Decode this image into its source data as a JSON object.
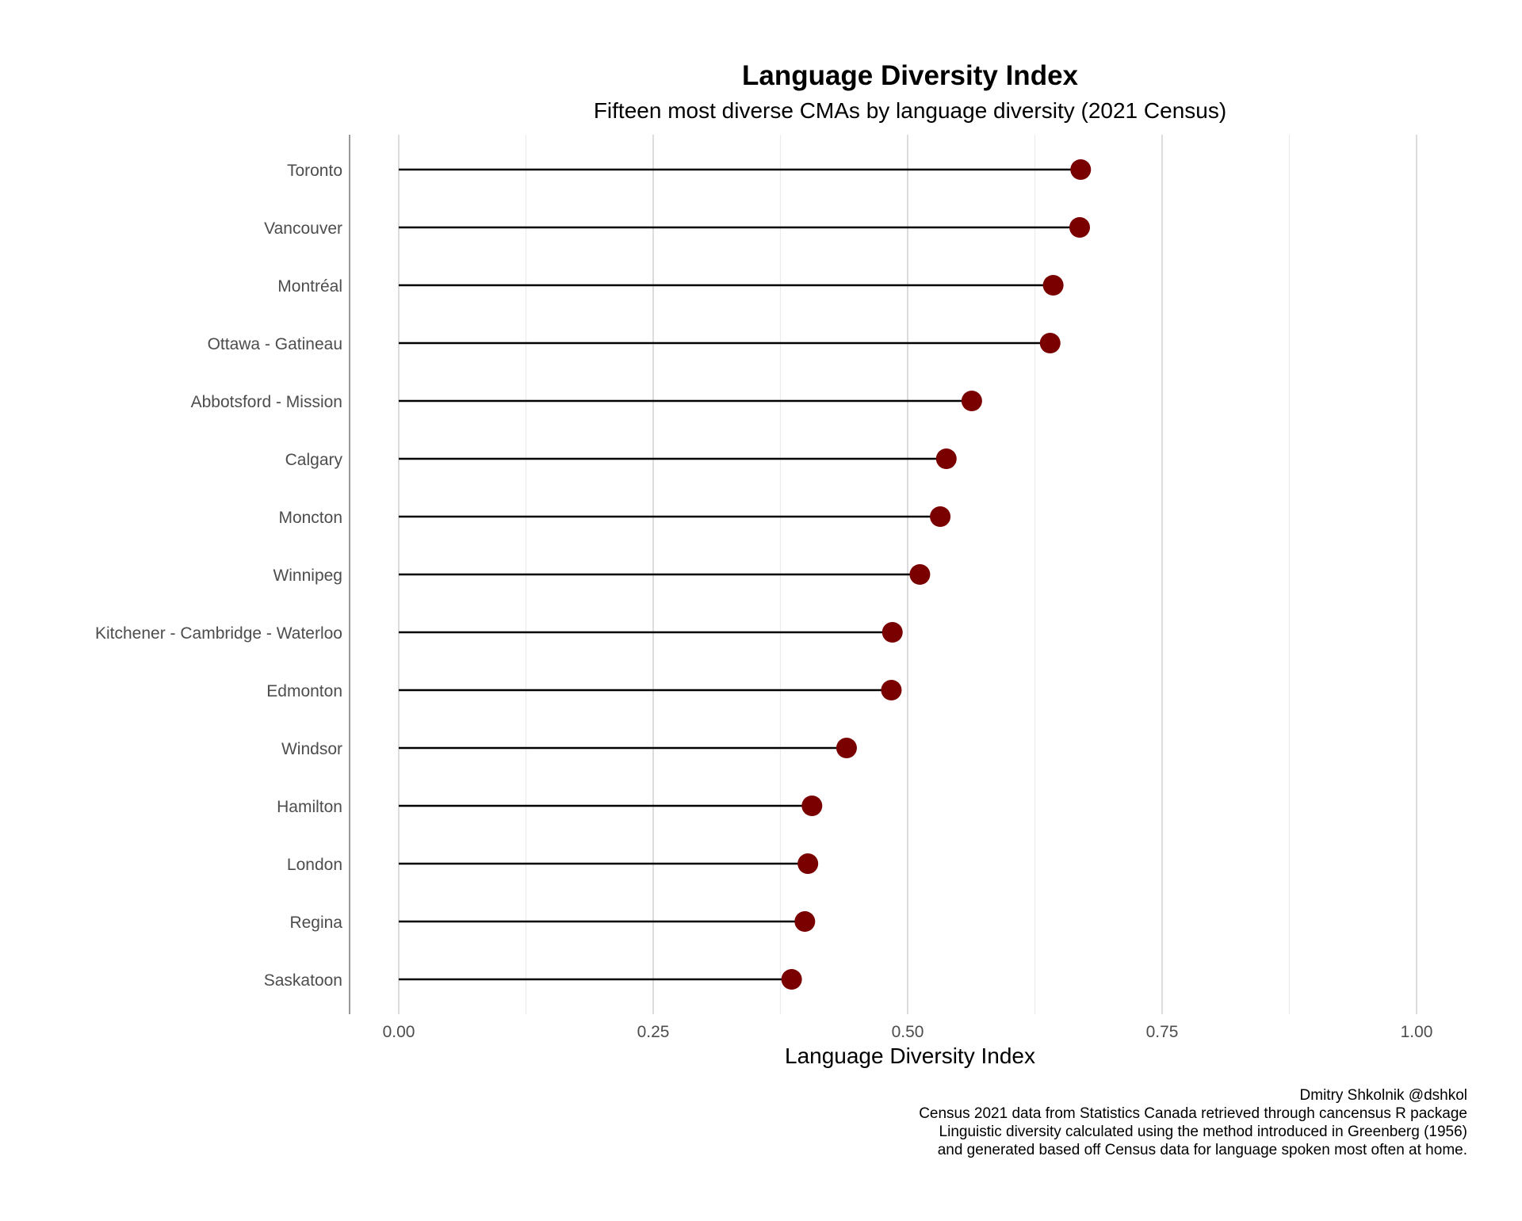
{
  "chart_data": {
    "type": "lollipop",
    "title": "Language Diversity Index",
    "subtitle": "Fifteen most diverse CMAs by language diversity (2021 Census)",
    "xlabel": "Language Diversity Index",
    "ylabel": "",
    "xlim": [
      0,
      1
    ],
    "x_ticks": [
      0,
      0.25,
      0.5,
      0.75,
      1.0
    ],
    "x_tick_labels": [
      "0.00",
      "0.25",
      "0.50",
      "0.75",
      "1.00"
    ],
    "grid": "vertical",
    "categories": [
      "Toronto",
      "Vancouver",
      "Montréal",
      "Ottawa - Gatineau",
      "Abbotsford - Mission",
      "Calgary",
      "Moncton",
      "Winnipeg",
      "Kitchener - Cambridge - Waterloo",
      "Edmonton",
      "Windsor",
      "Hamilton",
      "London",
      "Regina",
      "Saskatoon"
    ],
    "values": [
      0.67,
      0.669,
      0.643,
      0.64,
      0.563,
      0.538,
      0.532,
      0.512,
      0.485,
      0.484,
      0.44,
      0.406,
      0.402,
      0.399,
      0.386
    ],
    "point_color": "#7a0000",
    "line_color": "#000000",
    "caption": [
      "Dmitry Shkolnik @dshkol",
      "Census 2021 data from Statistics Canada retrieved through cancensus R package",
      "Linguistic diversity calculated using the method introduced in Greenberg (1956)",
      "and generated based off Census data for language spoken most often at home."
    ]
  }
}
